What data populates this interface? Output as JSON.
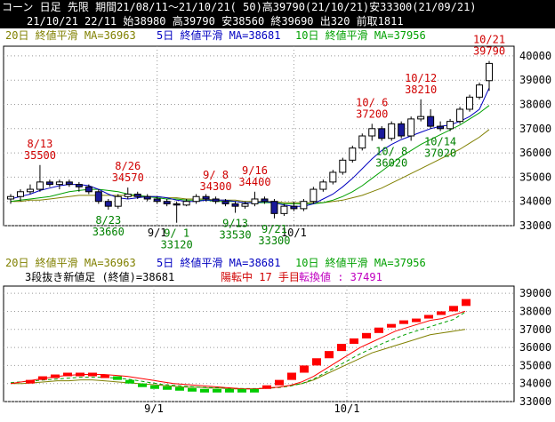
{
  "header": {
    "title": "コーン 日足 先限 期間21/08/11～21/10/21( 50)高39790(21/10/21)安33300(21/09/21)",
    "info": "21/10/21 22/11 始38980 高39790 安38560 終39690 出320 前取1811"
  },
  "colors": {
    "ma20": "#808000",
    "ma5": "#0000c0",
    "ma10": "#00a000",
    "up": "#ffffff",
    "down": "#1a1a9a",
    "annot_high": "#d00000",
    "annot_low": "#008000",
    "brick_up": "#ff0000",
    "brick_down": "#00cc00",
    "reversal_line": "#ff0000",
    "conversion": "#c000c0"
  },
  "top_panel": {
    "legend": {
      "ma20": "20日 終値平滑 MA=36963",
      "ma5": "5日 終値平滑 MA=38681",
      "ma10": "10日 終値平滑 MA=37956"
    }
  },
  "bottom_panel": {
    "legend": {
      "ma20": "20日 終値平滑 MA=36963",
      "ma5": "5日 終値平滑 MA=38681",
      "ma10": "10日 終値平滑 MA=37956"
    },
    "line2": {
      "label": "3段抜き新値足 (終値)=38681",
      "status": "陽転中 17 手目",
      "conversion": "転換値 : 37491"
    }
  },
  "chart_data": [
    {
      "type": "candlestick",
      "title": "コーン 日足 先限",
      "ylim": [
        33000,
        40400
      ],
      "y_ticks": [
        "40000",
        "39000",
        "38000",
        "37000",
        "36000",
        "35000",
        "34000",
        "33000"
      ],
      "x_ticks": [
        "9/1",
        "10/1"
      ],
      "candles": [
        {
          "o": 34100,
          "h": 34300,
          "l": 33900,
          "c": 34200
        },
        {
          "o": 34200,
          "h": 34500,
          "l": 34000,
          "c": 34400
        },
        {
          "o": 34400,
          "h": 34700,
          "l": 34300,
          "c": 34500
        },
        {
          "o": 34500,
          "h": 35500,
          "l": 34400,
          "c": 34800
        },
        {
          "o": 34800,
          "h": 34900,
          "l": 34600,
          "c": 34700
        },
        {
          "o": 34700,
          "h": 34900,
          "l": 34500,
          "c": 34800
        },
        {
          "o": 34800,
          "h": 34900,
          "l": 34600,
          "c": 34700
        },
        {
          "o": 34700,
          "h": 34800,
          "l": 34400,
          "c": 34600
        },
        {
          "o": 34600,
          "h": 34700,
          "l": 34300,
          "c": 34400
        },
        {
          "o": 34400,
          "h": 34500,
          "l": 33900,
          "c": 34000
        },
        {
          "o": 34000,
          "h": 34100,
          "l": 33660,
          "c": 33800
        },
        {
          "o": 33800,
          "h": 34300,
          "l": 33700,
          "c": 34200
        },
        {
          "o": 34200,
          "h": 34570,
          "l": 34100,
          "c": 34300
        },
        {
          "o": 34300,
          "h": 34400,
          "l": 34100,
          "c": 34200
        },
        {
          "o": 34200,
          "h": 34300,
          "l": 34000,
          "c": 34100
        },
        {
          "o": 34100,
          "h": 34200,
          "l": 33900,
          "c": 34000
        },
        {
          "o": 34000,
          "h": 34100,
          "l": 33800,
          "c": 33900
        },
        {
          "o": 33900,
          "h": 34000,
          "l": 33120,
          "c": 33850
        },
        {
          "o": 33850,
          "h": 34100,
          "l": 33800,
          "c": 34000
        },
        {
          "o": 34000,
          "h": 34300,
          "l": 33900,
          "c": 34200
        },
        {
          "o": 34200,
          "h": 34300,
          "l": 34000,
          "c": 34100
        },
        {
          "o": 34100,
          "h": 34200,
          "l": 33900,
          "c": 34000
        },
        {
          "o": 34000,
          "h": 34100,
          "l": 33800,
          "c": 33900
        },
        {
          "o": 33900,
          "h": 34000,
          "l": 33530,
          "c": 33800
        },
        {
          "o": 33800,
          "h": 34000,
          "l": 33700,
          "c": 33900
        },
        {
          "o": 33900,
          "h": 34400,
          "l": 33800,
          "c": 34100
        },
        {
          "o": 34100,
          "h": 34200,
          "l": 33900,
          "c": 34000
        },
        {
          "o": 34000,
          "h": 34100,
          "l": 33300,
          "c": 33500
        },
        {
          "o": 33500,
          "h": 33900,
          "l": 33400,
          "c": 33800
        },
        {
          "o": 33800,
          "h": 34000,
          "l": 33600,
          "c": 33700
        },
        {
          "o": 33700,
          "h": 34100,
          "l": 33600,
          "c": 34000
        },
        {
          "o": 34000,
          "h": 34600,
          "l": 33900,
          "c": 34500
        },
        {
          "o": 34500,
          "h": 34900,
          "l": 34400,
          "c": 34800
        },
        {
          "o": 34800,
          "h": 35300,
          "l": 34700,
          "c": 35200
        },
        {
          "o": 35200,
          "h": 35800,
          "l": 35100,
          "c": 35700
        },
        {
          "o": 35700,
          "h": 36300,
          "l": 35600,
          "c": 36200
        },
        {
          "o": 36200,
          "h": 36800,
          "l": 36100,
          "c": 36700
        },
        {
          "o": 36700,
          "h": 37200,
          "l": 36500,
          "c": 37000
        },
        {
          "o": 37000,
          "h": 37100,
          "l": 36500,
          "c": 36600
        },
        {
          "o": 36600,
          "h": 37300,
          "l": 36500,
          "c": 37200
        },
        {
          "o": 37200,
          "h": 37300,
          "l": 36600,
          "c": 36700
        },
        {
          "o": 36700,
          "h": 37500,
          "l": 36500,
          "c": 37400
        },
        {
          "o": 37400,
          "h": 38210,
          "l": 37300,
          "c": 37500
        },
        {
          "o": 37500,
          "h": 37800,
          "l": 37000,
          "c": 37100
        },
        {
          "o": 37100,
          "h": 37300,
          "l": 36900,
          "c": 37000
        },
        {
          "o": 37000,
          "h": 37400,
          "l": 36900,
          "c": 37300
        },
        {
          "o": 37300,
          "h": 37900,
          "l": 37200,
          "c": 37800
        },
        {
          "o": 37800,
          "h": 38400,
          "l": 37700,
          "c": 38300
        },
        {
          "o": 38300,
          "h": 38900,
          "l": 38200,
          "c": 38800
        },
        {
          "o": 38980,
          "h": 39790,
          "l": 38560,
          "c": 39690
        }
      ],
      "ma5": [
        34100,
        34200,
        34300,
        34450,
        34550,
        34650,
        34700,
        34700,
        34650,
        34500,
        34300,
        34150,
        34100,
        34150,
        34200,
        34200,
        34150,
        34050,
        34000,
        34000,
        34050,
        34050,
        34050,
        34000,
        33950,
        33950,
        34000,
        33950,
        33850,
        33800,
        33800,
        33900,
        34100,
        34300,
        34600,
        34950,
        35350,
        35750,
        36100,
        36350,
        36550,
        36700,
        36850,
        37000,
        37100,
        37150,
        37300,
        37500,
        37800,
        38681
      ],
      "ma10": [
        34000,
        34050,
        34100,
        34150,
        34200,
        34300,
        34400,
        34450,
        34500,
        34500,
        34450,
        34400,
        34300,
        34250,
        34200,
        34150,
        34100,
        34100,
        34050,
        34050,
        34050,
        34000,
        34000,
        34000,
        33950,
        33950,
        33950,
        33950,
        33900,
        33900,
        33900,
        33900,
        33950,
        34050,
        34200,
        34400,
        34650,
        34950,
        35250,
        35550,
        35850,
        36100,
        36350,
        36550,
        36750,
        36950,
        37150,
        37400,
        37650,
        37956
      ],
      "ma20": [
        34000,
        34000,
        34050,
        34050,
        34100,
        34150,
        34200,
        34250,
        34250,
        34250,
        34250,
        34250,
        34250,
        34200,
        34200,
        34200,
        34150,
        34150,
        34100,
        34100,
        34100,
        34050,
        34050,
        34050,
        34000,
        34000,
        34000,
        34000,
        33950,
        33950,
        33950,
        33950,
        33950,
        34000,
        34050,
        34150,
        34250,
        34400,
        34550,
        34750,
        34950,
        35150,
        35350,
        35550,
        35750,
        35950,
        36150,
        36400,
        36650,
        36963
      ],
      "annotations": [
        {
          "i": 3,
          "date": "8/13",
          "value": "35500",
          "kind": "high"
        },
        {
          "i": 12,
          "date": "8/26",
          "value": "34570",
          "kind": "high"
        },
        {
          "i": 10,
          "date": "8/23",
          "value": "33660",
          "kind": "low"
        },
        {
          "i": 17,
          "date": "9/ 1",
          "value": "33120",
          "kind": "low"
        },
        {
          "i": 21,
          "date": "9/ 8",
          "value": "34300",
          "kind": "high"
        },
        {
          "i": 25,
          "date": "9/16",
          "value": "34400",
          "kind": "high"
        },
        {
          "i": 23,
          "date": "9/13",
          "value": "33530",
          "kind": "low"
        },
        {
          "i": 27,
          "date": "9/21",
          "value": "33300",
          "kind": "low"
        },
        {
          "i": 37,
          "date": "10/ 6",
          "value": "37200",
          "kind": "high"
        },
        {
          "i": 42,
          "date": "10/12",
          "value": "38210",
          "kind": "high"
        },
        {
          "i": 49,
          "date": "10/21",
          "value": "39790",
          "kind": "high"
        },
        {
          "i": 39,
          "date": "10/ 8",
          "value": "36020",
          "kind": "low"
        },
        {
          "i": 44,
          "date": "10/14",
          "value": "37020",
          "kind": "low"
        }
      ]
    },
    {
      "type": "bar",
      "title": "3段抜き新値足 (終値)",
      "ylim": [
        33000,
        39400
      ],
      "y_ticks": [
        "39000",
        "38000",
        "37000",
        "36000",
        "35000",
        "34000",
        "33000"
      ],
      "x_ticks": [
        "9/1",
        "10/1"
      ],
      "bricks": [
        {
          "i": 3,
          "lo": 34000,
          "hi": 34200,
          "dir": "up"
        },
        {
          "i": 5,
          "lo": 34200,
          "hi": 34400,
          "dir": "up"
        },
        {
          "i": 7,
          "lo": 34400,
          "hi": 34500,
          "dir": "up"
        },
        {
          "i": 9,
          "lo": 34500,
          "hi": 34600,
          "dir": "up"
        },
        {
          "i": 11,
          "lo": 34500,
          "hi": 34600,
          "dir": "up"
        },
        {
          "i": 13,
          "lo": 34500,
          "hi": 34600,
          "dir": "up"
        },
        {
          "i": 15,
          "lo": 34400,
          "hi": 34500,
          "dir": "up"
        },
        {
          "i": 17,
          "lo": 34200,
          "hi": 34400,
          "dir": "down"
        },
        {
          "i": 19,
          "lo": 34000,
          "hi": 34200,
          "dir": "down"
        },
        {
          "i": 21,
          "lo": 33900,
          "hi": 34000,
          "dir": "down"
        },
        {
          "i": 23,
          "lo": 33800,
          "hi": 33900,
          "dir": "down"
        },
        {
          "i": 25,
          "lo": 33750,
          "hi": 33850,
          "dir": "down"
        },
        {
          "i": 27,
          "lo": 33700,
          "hi": 33800,
          "dir": "down"
        },
        {
          "i": 29,
          "lo": 33650,
          "hi": 33750,
          "dir": "down"
        },
        {
          "i": 31,
          "lo": 33600,
          "hi": 33700,
          "dir": "down"
        },
        {
          "i": 33,
          "lo": 33600,
          "hi": 33700,
          "dir": "down"
        },
        {
          "i": 35,
          "lo": 33600,
          "hi": 33700,
          "dir": "down"
        },
        {
          "i": 37,
          "lo": 33600,
          "hi": 33700,
          "dir": "down"
        },
        {
          "i": 39,
          "lo": 33600,
          "hi": 33700,
          "dir": "down"
        },
        {
          "i": 41,
          "lo": 33700,
          "hi": 33900,
          "dir": "up"
        },
        {
          "i": 43,
          "lo": 33900,
          "hi": 34200,
          "dir": "up"
        },
        {
          "i": 45,
          "lo": 34200,
          "hi": 34600,
          "dir": "up"
        },
        {
          "i": 47,
          "lo": 34600,
          "hi": 35000,
          "dir": "up"
        },
        {
          "i": 49,
          "lo": 35000,
          "hi": 35400,
          "dir": "up"
        },
        {
          "i": 51,
          "lo": 35400,
          "hi": 35800,
          "dir": "up"
        },
        {
          "i": 53,
          "lo": 35800,
          "hi": 36200,
          "dir": "up"
        },
        {
          "i": 55,
          "lo": 36200,
          "hi": 36500,
          "dir": "up"
        },
        {
          "i": 57,
          "lo": 36500,
          "hi": 36800,
          "dir": "up"
        },
        {
          "i": 59,
          "lo": 36800,
          "hi": 37100,
          "dir": "up"
        },
        {
          "i": 61,
          "lo": 37100,
          "hi": 37300,
          "dir": "up"
        },
        {
          "i": 63,
          "lo": 37300,
          "hi": 37500,
          "dir": "up"
        },
        {
          "i": 65,
          "lo": 37500,
          "hi": 37600,
          "dir": "up"
        },
        {
          "i": 67,
          "lo": 37600,
          "hi": 37800,
          "dir": "up"
        },
        {
          "i": 69,
          "lo": 37800,
          "hi": 38000,
          "dir": "up"
        },
        {
          "i": 71,
          "lo": 38000,
          "hi": 38300,
          "dir": "up"
        },
        {
          "i": 73,
          "lo": 38300,
          "hi": 38681,
          "dir": "up"
        }
      ],
      "reversal_line": [
        34000,
        34100,
        34200,
        34300,
        34400,
        34450,
        34500,
        34500,
        34500,
        34450,
        34400,
        34300,
        34200,
        34100,
        34000,
        33950,
        33900,
        33850,
        33800,
        33750,
        33700,
        33700,
        33750,
        33800,
        33900,
        34100,
        34400,
        34800,
        35200,
        35600,
        36000,
        36300,
        36600,
        36900,
        37100,
        37300,
        37500,
        37600,
        37800,
        38000
      ],
      "ma20_line": [
        34000,
        34000,
        34050,
        34100,
        34150,
        34150,
        34200,
        34200,
        34150,
        34100,
        34050,
        34000,
        33950,
        33900,
        33850,
        33800,
        33800,
        33750,
        33750,
        33700,
        33700,
        33700,
        33750,
        33800,
        33900,
        34000,
        34200,
        34500,
        34800,
        35100,
        35400,
        35700,
        35900,
        36100,
        36300,
        36500,
        36700,
        36800,
        36900,
        37000
      ],
      "ma10_line": [
        34050,
        34100,
        34150,
        34200,
        34250,
        34300,
        34350,
        34350,
        34350,
        34300,
        34250,
        34150,
        34050,
        33950,
        33900,
        33850,
        33800,
        33780,
        33760,
        33740,
        33720,
        33720,
        33740,
        33780,
        33860,
        34000,
        34250,
        34600,
        34950,
        35300,
        35650,
        35950,
        36250,
        36500,
        36750,
        36950,
        37150,
        37350,
        37550,
        37956
      ]
    }
  ]
}
